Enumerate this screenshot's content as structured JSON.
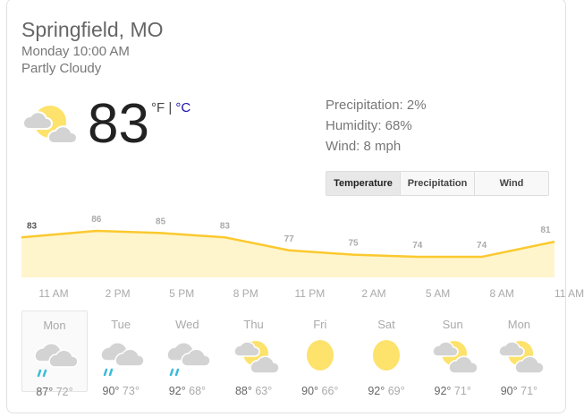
{
  "location": "Springfield, MO",
  "datetime": "Monday 10:00 AM",
  "condition": "Partly Cloudy",
  "current": {
    "temp": "83",
    "unit_f": "°F",
    "sep": " | ",
    "unit_c": "°C",
    "icon": "partly-cloudy-icon"
  },
  "details": {
    "precip": "Precipitation: 2%",
    "humidity": "Humidity: 68%",
    "wind": "Wind: 8 mph"
  },
  "tabs": [
    "Temperature",
    "Precipitation",
    "Wind"
  ],
  "colors": {
    "line": "#fbc92f",
    "fill": "#fff5cc",
    "sun": "#fde26b",
    "cloud": "#d3d3d3",
    "rain": "#3bbbd8"
  },
  "chart_data": {
    "type": "area",
    "values": [
      83,
      86,
      85,
      83,
      77,
      75,
      74,
      74,
      81
    ],
    "labels": [
      "83",
      "86",
      "85",
      "83",
      "77",
      "75",
      "74",
      "74",
      "81"
    ],
    "x_labels": [
      "11 AM",
      "2 PM",
      "5 PM",
      "8 PM",
      "11 PM",
      "2 AM",
      "5 AM",
      "8 AM",
      "11 AM"
    ]
  },
  "days": [
    {
      "name": "Mon",
      "hi": "87°",
      "lo": "72°",
      "icon": "rain"
    },
    {
      "name": "Tue",
      "hi": "90°",
      "lo": "73°",
      "icon": "rain"
    },
    {
      "name": "Wed",
      "hi": "92°",
      "lo": "68°",
      "icon": "rain"
    },
    {
      "name": "Thu",
      "hi": "88°",
      "lo": "63°",
      "icon": "partly"
    },
    {
      "name": "Fri",
      "hi": "90°",
      "lo": "66°",
      "icon": "sun"
    },
    {
      "name": "Sat",
      "hi": "92°",
      "lo": "69°",
      "icon": "sun"
    },
    {
      "name": "Sun",
      "hi": "92°",
      "lo": "71°",
      "icon": "partly"
    },
    {
      "name": "Mon",
      "hi": "90°",
      "lo": "71°",
      "icon": "partly"
    }
  ]
}
